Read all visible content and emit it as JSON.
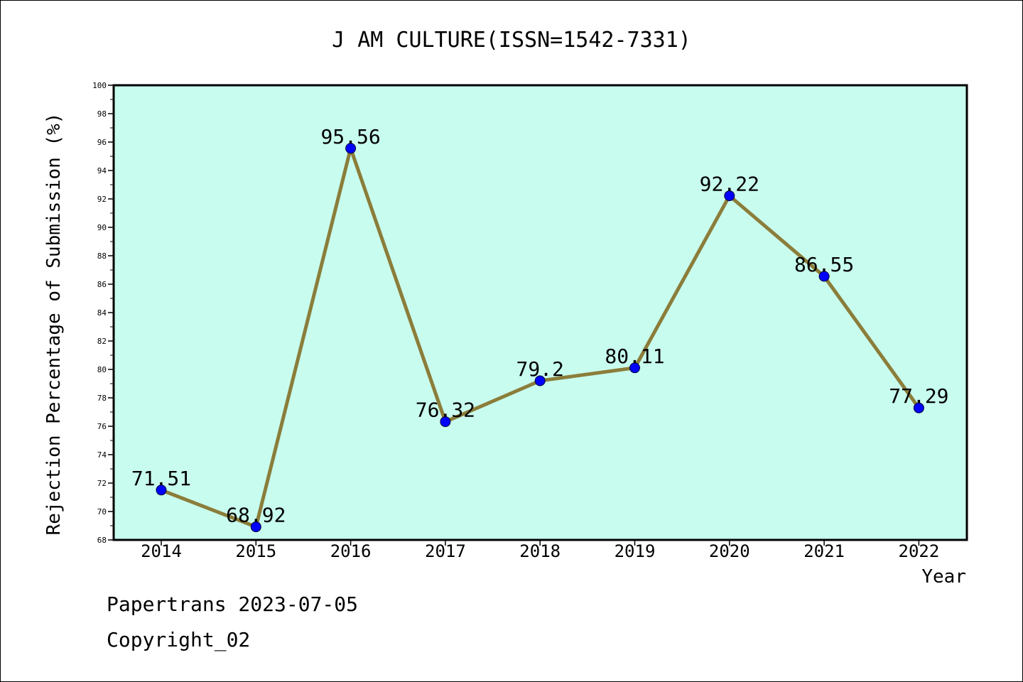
{
  "chart_data": {
    "type": "line",
    "title": "J AM CULTURE(ISSN=1542-7331)",
    "xlabel": "Year",
    "ylabel": "Rejection Percentage of Submission (%)",
    "categories": [
      "2014",
      "2015",
      "2016",
      "2017",
      "2018",
      "2019",
      "2020",
      "2021",
      "2022"
    ],
    "values": [
      71.51,
      68.92,
      95.56,
      76.32,
      79.2,
      80.11,
      92.22,
      86.55,
      77.29
    ],
    "data_labels": [
      "71.51",
      "68.92",
      "95.56",
      "76.32",
      "79.2",
      "80.11",
      "92.22",
      "86.55",
      "77.29"
    ],
    "ylim": [
      68,
      100
    ],
    "yticks": [
      "68",
      "70",
      "72",
      "74",
      "76",
      "78",
      "80",
      "82",
      "84",
      "86",
      "88",
      "90",
      "92",
      "94",
      "96",
      "98",
      "100"
    ],
    "grid": false,
    "legend": "none",
    "colors": {
      "plot_background": "#c8fcee",
      "line": "#8b7d3a",
      "marker": "#0000ff"
    }
  },
  "footer": {
    "line1": "Papertrans 2023-07-05",
    "line2": "Copyright_02"
  }
}
